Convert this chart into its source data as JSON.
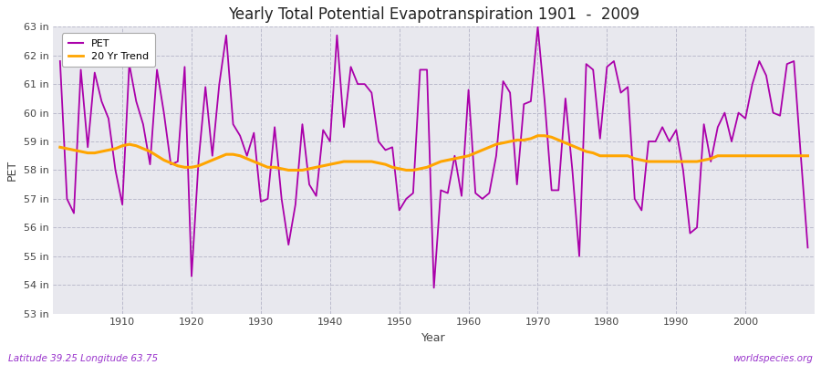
{
  "title": "Yearly Total Potential Evapotranspiration 1901  -  2009",
  "ylabel": "PET",
  "xlabel": "Year",
  "footnote_left": "Latitude 39.25 Longitude 63.75",
  "footnote_right": "worldspecies.org",
  "pet_color": "#AA00AA",
  "trend_color": "#FFA500",
  "fig_bg_color": "#FFFFFF",
  "plot_bg_color": "#E8E8EE",
  "grid_color": "#BBBBCC",
  "ylim": [
    53,
    63
  ],
  "yticks": [
    53,
    54,
    55,
    56,
    57,
    58,
    59,
    60,
    61,
    62,
    63
  ],
  "ytick_labels": [
    "53 in",
    "54 in",
    "55 in",
    "56 in",
    "57 in",
    "58 in",
    "59 in",
    "60 in",
    "61 in",
    "62 in",
    "63 in"
  ],
  "xticks": [
    1910,
    1920,
    1930,
    1940,
    1950,
    1960,
    1970,
    1980,
    1990,
    2000
  ],
  "years": [
    1901,
    1902,
    1903,
    1904,
    1905,
    1906,
    1907,
    1908,
    1909,
    1910,
    1911,
    1912,
    1913,
    1914,
    1915,
    1916,
    1917,
    1918,
    1919,
    1920,
    1921,
    1922,
    1923,
    1924,
    1925,
    1926,
    1927,
    1928,
    1929,
    1930,
    1931,
    1932,
    1933,
    1934,
    1935,
    1936,
    1937,
    1938,
    1939,
    1940,
    1941,
    1942,
    1943,
    1944,
    1945,
    1946,
    1947,
    1948,
    1949,
    1950,
    1951,
    1952,
    1953,
    1954,
    1955,
    1956,
    1957,
    1958,
    1959,
    1960,
    1961,
    1962,
    1963,
    1964,
    1965,
    1966,
    1967,
    1968,
    1969,
    1970,
    1971,
    1972,
    1973,
    1974,
    1975,
    1976,
    1977,
    1978,
    1979,
    1980,
    1981,
    1982,
    1983,
    1984,
    1985,
    1986,
    1987,
    1988,
    1989,
    1990,
    1991,
    1992,
    1993,
    1994,
    1995,
    1996,
    1997,
    1998,
    1999,
    2000,
    2001,
    2002,
    2003,
    2004,
    2005,
    2006,
    2007,
    2008,
    2009
  ],
  "pet_values": [
    61.8,
    57.0,
    56.5,
    61.5,
    58.8,
    61.4,
    60.4,
    59.8,
    58.0,
    56.8,
    61.7,
    60.4,
    59.6,
    58.2,
    61.5,
    60.0,
    58.2,
    58.3,
    61.6,
    54.3,
    58.3,
    60.9,
    58.5,
    61.0,
    62.7,
    59.6,
    59.2,
    58.5,
    59.3,
    56.9,
    57.0,
    59.5,
    57.0,
    55.4,
    56.8,
    59.6,
    57.5,
    57.1,
    59.4,
    59.0,
    62.7,
    59.5,
    61.6,
    61.0,
    61.0,
    60.7,
    59.0,
    58.7,
    58.8,
    56.6,
    57.0,
    57.2,
    61.5,
    61.5,
    53.9,
    57.3,
    57.2,
    58.5,
    57.1,
    60.8,
    57.2,
    57.0,
    57.2,
    58.5,
    61.1,
    60.7,
    57.5,
    60.3,
    60.4,
    63.0,
    60.4,
    57.3,
    57.3,
    60.5,
    58.0,
    55.0,
    61.7,
    61.5,
    59.1,
    61.6,
    61.8,
    60.7,
    60.9,
    57.0,
    56.6,
    59.0,
    59.0,
    59.5,
    59.0,
    59.4,
    58.0,
    55.8,
    56.0,
    59.6,
    58.3,
    59.5,
    60.0,
    59.0,
    60.0,
    59.8,
    61.0,
    61.8,
    61.3,
    60.0,
    59.9,
    61.7,
    61.8,
    58.5,
    55.3
  ],
  "trend_values": [
    58.8,
    58.75,
    58.7,
    58.65,
    58.6,
    58.6,
    58.65,
    58.7,
    58.75,
    58.85,
    58.9,
    58.85,
    58.75,
    58.65,
    58.5,
    58.35,
    58.25,
    58.15,
    58.1,
    58.1,
    58.15,
    58.25,
    58.35,
    58.45,
    58.55,
    58.55,
    58.5,
    58.4,
    58.3,
    58.2,
    58.1,
    58.1,
    58.05,
    58.0,
    58.0,
    58.0,
    58.05,
    58.1,
    58.15,
    58.2,
    58.25,
    58.3,
    58.3,
    58.3,
    58.3,
    58.3,
    58.25,
    58.2,
    58.1,
    58.05,
    58.0,
    58.0,
    58.05,
    58.1,
    58.2,
    58.3,
    58.35,
    58.4,
    58.45,
    58.5,
    58.6,
    58.7,
    58.8,
    58.9,
    58.95,
    59.0,
    59.05,
    59.05,
    59.1,
    59.2,
    59.2,
    59.15,
    59.05,
    58.95,
    58.85,
    58.75,
    58.65,
    58.6,
    58.5,
    58.5,
    58.5,
    58.5,
    58.5,
    58.4,
    58.35,
    58.3,
    58.3,
    58.3,
    58.3,
    58.3,
    58.3,
    58.3,
    58.3,
    58.35,
    58.4,
    58.5,
    58.5,
    58.5,
    58.5,
    58.5,
    58.5,
    58.5,
    58.5,
    58.5,
    58.5,
    58.5,
    58.5,
    58.5,
    58.5
  ]
}
